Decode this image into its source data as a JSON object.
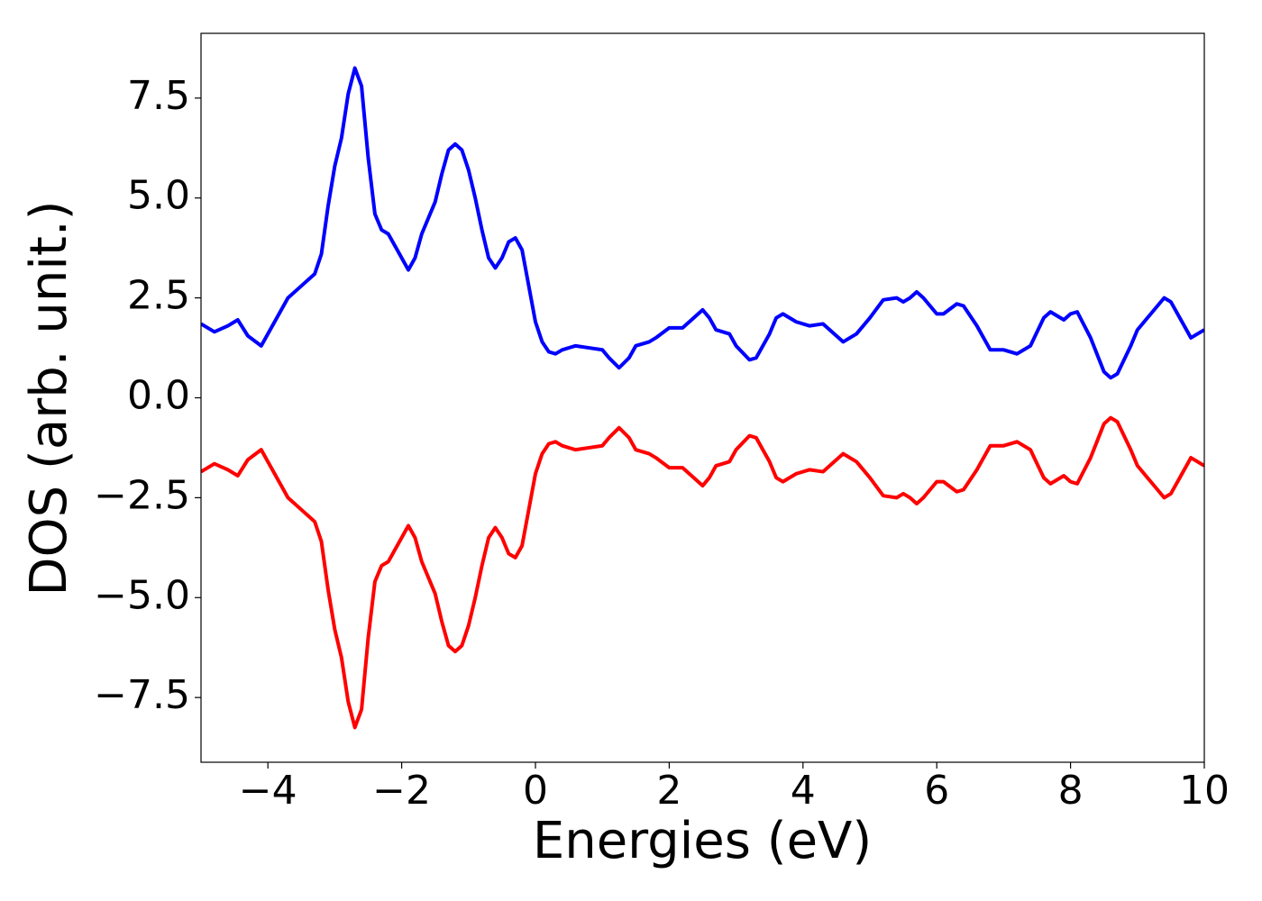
{
  "chart_data": {
    "type": "line",
    "x_label": "Energies (eV)",
    "y_label": "DOS (arb. unit.)",
    "xlim": [
      -5,
      10
    ],
    "ylim": [
      -9.12,
      9.12
    ],
    "xticks": [
      {
        "value": -4,
        "label": "−4"
      },
      {
        "value": -2,
        "label": "−2"
      },
      0,
      2,
      4,
      6,
      8,
      10
    ],
    "yticks": [
      {
        "value": -7.5,
        "label": "−7.5"
      },
      {
        "value": -5,
        "label": "−5.0"
      },
      {
        "value": -2.5,
        "label": "−2.5"
      },
      {
        "value": 0,
        "label": "0.0"
      },
      2.5,
      {
        "value": 5,
        "label": "5.0"
      },
      7.5
    ],
    "x": [
      -5.0,
      -4.8,
      -4.6,
      -4.45,
      -4.3,
      -4.1,
      -3.9,
      -3.7,
      -3.5,
      -3.3,
      -3.2,
      -3.1,
      -3.0,
      -2.9,
      -2.8,
      -2.7,
      -2.6,
      -2.5,
      -2.4,
      -2.3,
      -2.2,
      -2.0,
      -1.9,
      -1.8,
      -1.7,
      -1.6,
      -1.5,
      -1.4,
      -1.3,
      -1.2,
      -1.1,
      -1.0,
      -0.9,
      -0.8,
      -0.7,
      -0.6,
      -0.5,
      -0.4,
      -0.3,
      -0.2,
      -0.1,
      0.0,
      0.1,
      0.2,
      0.3,
      0.4,
      0.6,
      0.8,
      1.0,
      1.1,
      1.25,
      1.4,
      1.5,
      1.7,
      1.8,
      2.0,
      2.2,
      2.3,
      2.5,
      2.6,
      2.7,
      2.9,
      3.0,
      3.2,
      3.3,
      3.5,
      3.6,
      3.7,
      3.9,
      4.1,
      4.3,
      4.4,
      4.6,
      4.8,
      5.0,
      5.2,
      5.4,
      5.5,
      5.6,
      5.7,
      5.8,
      6.0,
      6.1,
      6.3,
      6.4,
      6.6,
      6.8,
      7.0,
      7.2,
      7.4,
      7.6,
      7.7,
      7.9,
      8.0,
      8.1,
      8.3,
      8.5,
      8.6,
      8.7,
      8.9,
      9.0,
      9.2,
      9.4,
      9.5,
      9.7,
      9.8,
      10.0
    ],
    "series": [
      {
        "color": "#0000ff",
        "values": [
          1.85,
          1.65,
          1.8,
          1.95,
          1.55,
          1.3,
          1.9,
          2.5,
          2.8,
          3.1,
          3.6,
          4.8,
          5.8,
          6.5,
          7.6,
          8.25,
          7.8,
          6.0,
          4.6,
          4.2,
          4.1,
          3.5,
          3.2,
          3.5,
          4.1,
          4.5,
          4.9,
          5.6,
          6.2,
          6.35,
          6.2,
          5.7,
          5.0,
          4.2,
          3.5,
          3.25,
          3.5,
          3.9,
          4.0,
          3.7,
          2.8,
          1.9,
          1.4,
          1.15,
          1.1,
          1.2,
          1.3,
          1.25,
          1.2,
          1.0,
          0.75,
          1.0,
          1.3,
          1.4,
          1.5,
          1.75,
          1.75,
          1.9,
          2.2,
          2.0,
          1.7,
          1.6,
          1.3,
          0.95,
          1.0,
          1.6,
          2.0,
          2.1,
          1.9,
          1.8,
          1.85,
          1.7,
          1.4,
          1.6,
          2.0,
          2.45,
          2.5,
          2.4,
          2.5,
          2.65,
          2.5,
          2.1,
          2.1,
          2.35,
          2.3,
          1.8,
          1.2,
          1.2,
          1.1,
          1.3,
          2.0,
          2.15,
          1.95,
          2.1,
          2.15,
          1.5,
          0.65,
          0.5,
          0.6,
          1.3,
          1.7,
          2.1,
          2.5,
          2.4,
          1.8,
          1.5,
          1.7
        ]
      },
      {
        "color": "#ff0000",
        "values": [
          -1.85,
          -1.65,
          -1.8,
          -1.95,
          -1.55,
          -1.3,
          -1.9,
          -2.5,
          -2.8,
          -3.1,
          -3.6,
          -4.8,
          -5.8,
          -6.5,
          -7.6,
          -8.25,
          -7.8,
          -6.0,
          -4.6,
          -4.2,
          -4.1,
          -3.5,
          -3.2,
          -3.5,
          -4.1,
          -4.5,
          -4.9,
          -5.6,
          -6.2,
          -6.35,
          -6.2,
          -5.7,
          -5.0,
          -4.2,
          -3.5,
          -3.25,
          -3.5,
          -3.9,
          -4.0,
          -3.7,
          -2.8,
          -1.9,
          -1.4,
          -1.15,
          -1.1,
          -1.2,
          -1.3,
          -1.25,
          -1.2,
          -1.0,
          -0.75,
          -1.0,
          -1.3,
          -1.4,
          -1.5,
          -1.75,
          -1.75,
          -1.9,
          -2.2,
          -2.0,
          -1.7,
          -1.6,
          -1.3,
          -0.95,
          -1.0,
          -1.6,
          -2.0,
          -2.1,
          -1.9,
          -1.8,
          -1.85,
          -1.7,
          -1.4,
          -1.6,
          -2.0,
          -2.45,
          -2.5,
          -2.4,
          -2.5,
          -2.65,
          -2.5,
          -2.1,
          -2.1,
          -2.35,
          -2.3,
          -1.8,
          -1.2,
          -1.2,
          -1.1,
          -1.3,
          -2.0,
          -2.15,
          -1.95,
          -2.1,
          -2.15,
          -1.5,
          -0.65,
          -0.5,
          -0.6,
          -1.3,
          -1.7,
          -2.1,
          -2.5,
          -2.4,
          -1.8,
          -1.5,
          -1.7
        ]
      }
    ]
  }
}
